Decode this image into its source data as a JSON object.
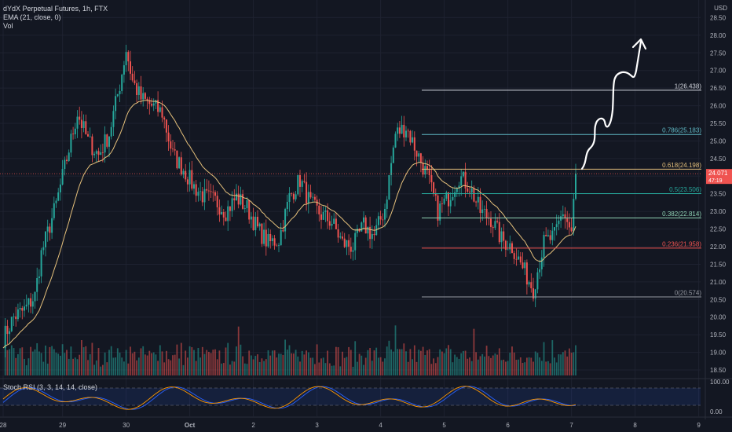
{
  "header": {
    "symbol_line": "dYdX Perpetual Futures, 1h, FTX",
    "ema_line": "EMA (21, close, 0)",
    "vol_line": "Vol",
    "currency": "USD"
  },
  "rsi": {
    "label": "Stoch RSI (3, 3, 14, 14, close)",
    "ticks": [
      "100.00",
      "0.00"
    ]
  },
  "price_tag": {
    "value": "24.071",
    "sub": "47:19"
  },
  "colors": {
    "background": "#131722",
    "up": "#26a69a",
    "down": "#ef5350",
    "ema": "#e5c07b",
    "grid": "#1e2230",
    "text": "#b2b5be"
  },
  "chart_data": {
    "type": "candlestick",
    "ylim": [
      18.3,
      29.0
    ],
    "y_ticks": [
      "18.50",
      "19.00",
      "19.50",
      "20.00",
      "20.50",
      "21.00",
      "21.50",
      "22.00",
      "22.50",
      "23.00",
      "23.50",
      "24.00",
      "24.50",
      "25.00",
      "25.50",
      "26.00",
      "26.50",
      "27.00",
      "27.50",
      "28.00",
      "28.50"
    ],
    "x_ticks": [
      "28",
      "29",
      "30",
      "Oct",
      "2",
      "3",
      "4",
      "5",
      "6",
      "7",
      "8",
      "9"
    ],
    "key_prices": [
      [
        0,
        19.4
      ],
      [
        5,
        20.0
      ],
      [
        10,
        20.2
      ],
      [
        15,
        20.6
      ],
      [
        18,
        21.8
      ],
      [
        25,
        23.2
      ],
      [
        30,
        24.5
      ],
      [
        35,
        25.8
      ],
      [
        40,
        25.0
      ],
      [
        45,
        24.6
      ],
      [
        50,
        25.2
      ],
      [
        55,
        26.6
      ],
      [
        58,
        27.6
      ],
      [
        61,
        26.7
      ],
      [
        65,
        26.2
      ],
      [
        70,
        26.0
      ],
      [
        75,
        25.8
      ],
      [
        80,
        24.6
      ],
      [
        85,
        24.2
      ],
      [
        90,
        23.7
      ],
      [
        95,
        23.4
      ],
      [
        100,
        23.3
      ],
      [
        105,
        23.0
      ],
      [
        110,
        23.4
      ],
      [
        115,
        23.1
      ],
      [
        120,
        22.5
      ],
      [
        125,
        22.1
      ],
      [
        130,
        22.2
      ],
      [
        135,
        23.4
      ],
      [
        140,
        23.9
      ],
      [
        145,
        23.2
      ],
      [
        150,
        22.9
      ],
      [
        155,
        22.7
      ],
      [
        160,
        22.1
      ],
      [
        165,
        22.0
      ],
      [
        170,
        22.6
      ],
      [
        175,
        22.3
      ],
      [
        180,
        23.1
      ],
      [
        185,
        25.2
      ],
      [
        190,
        25.4
      ],
      [
        195,
        24.7
      ],
      [
        200,
        24.0
      ],
      [
        205,
        23.0
      ],
      [
        210,
        23.4
      ],
      [
        215,
        24.0
      ],
      [
        220,
        23.7
      ],
      [
        225,
        23.0
      ],
      [
        230,
        22.8
      ],
      [
        235,
        22.2
      ],
      [
        240,
        22.0
      ],
      [
        245,
        21.4
      ],
      [
        250,
        20.8
      ],
      [
        255,
        22.1
      ],
      [
        260,
        22.3
      ],
      [
        264,
        23.0
      ],
      [
        268,
        22.4
      ],
      [
        270,
        24.07
      ]
    ],
    "fib_levels": [
      {
        "label": "1(26.438)",
        "price": 26.438,
        "color": "#d1d4dc"
      },
      {
        "label": "0.786(25.183)",
        "price": 25.183,
        "color": "#5fb8c4"
      },
      {
        "label": "0.618(24.198)",
        "price": 24.198,
        "color": "#e5c07b"
      },
      {
        "label": "0.5(23.506)",
        "price": 23.506,
        "color": "#26a69a"
      },
      {
        "label": "0.382(22.814)",
        "price": 22.814,
        "color": "#8fd1b3"
      },
      {
        "label": "0.236(21.958)",
        "price": 21.958,
        "color": "#ef5350"
      },
      {
        "label": "0(20.574)",
        "price": 20.574,
        "color": "#9598a1"
      }
    ]
  }
}
